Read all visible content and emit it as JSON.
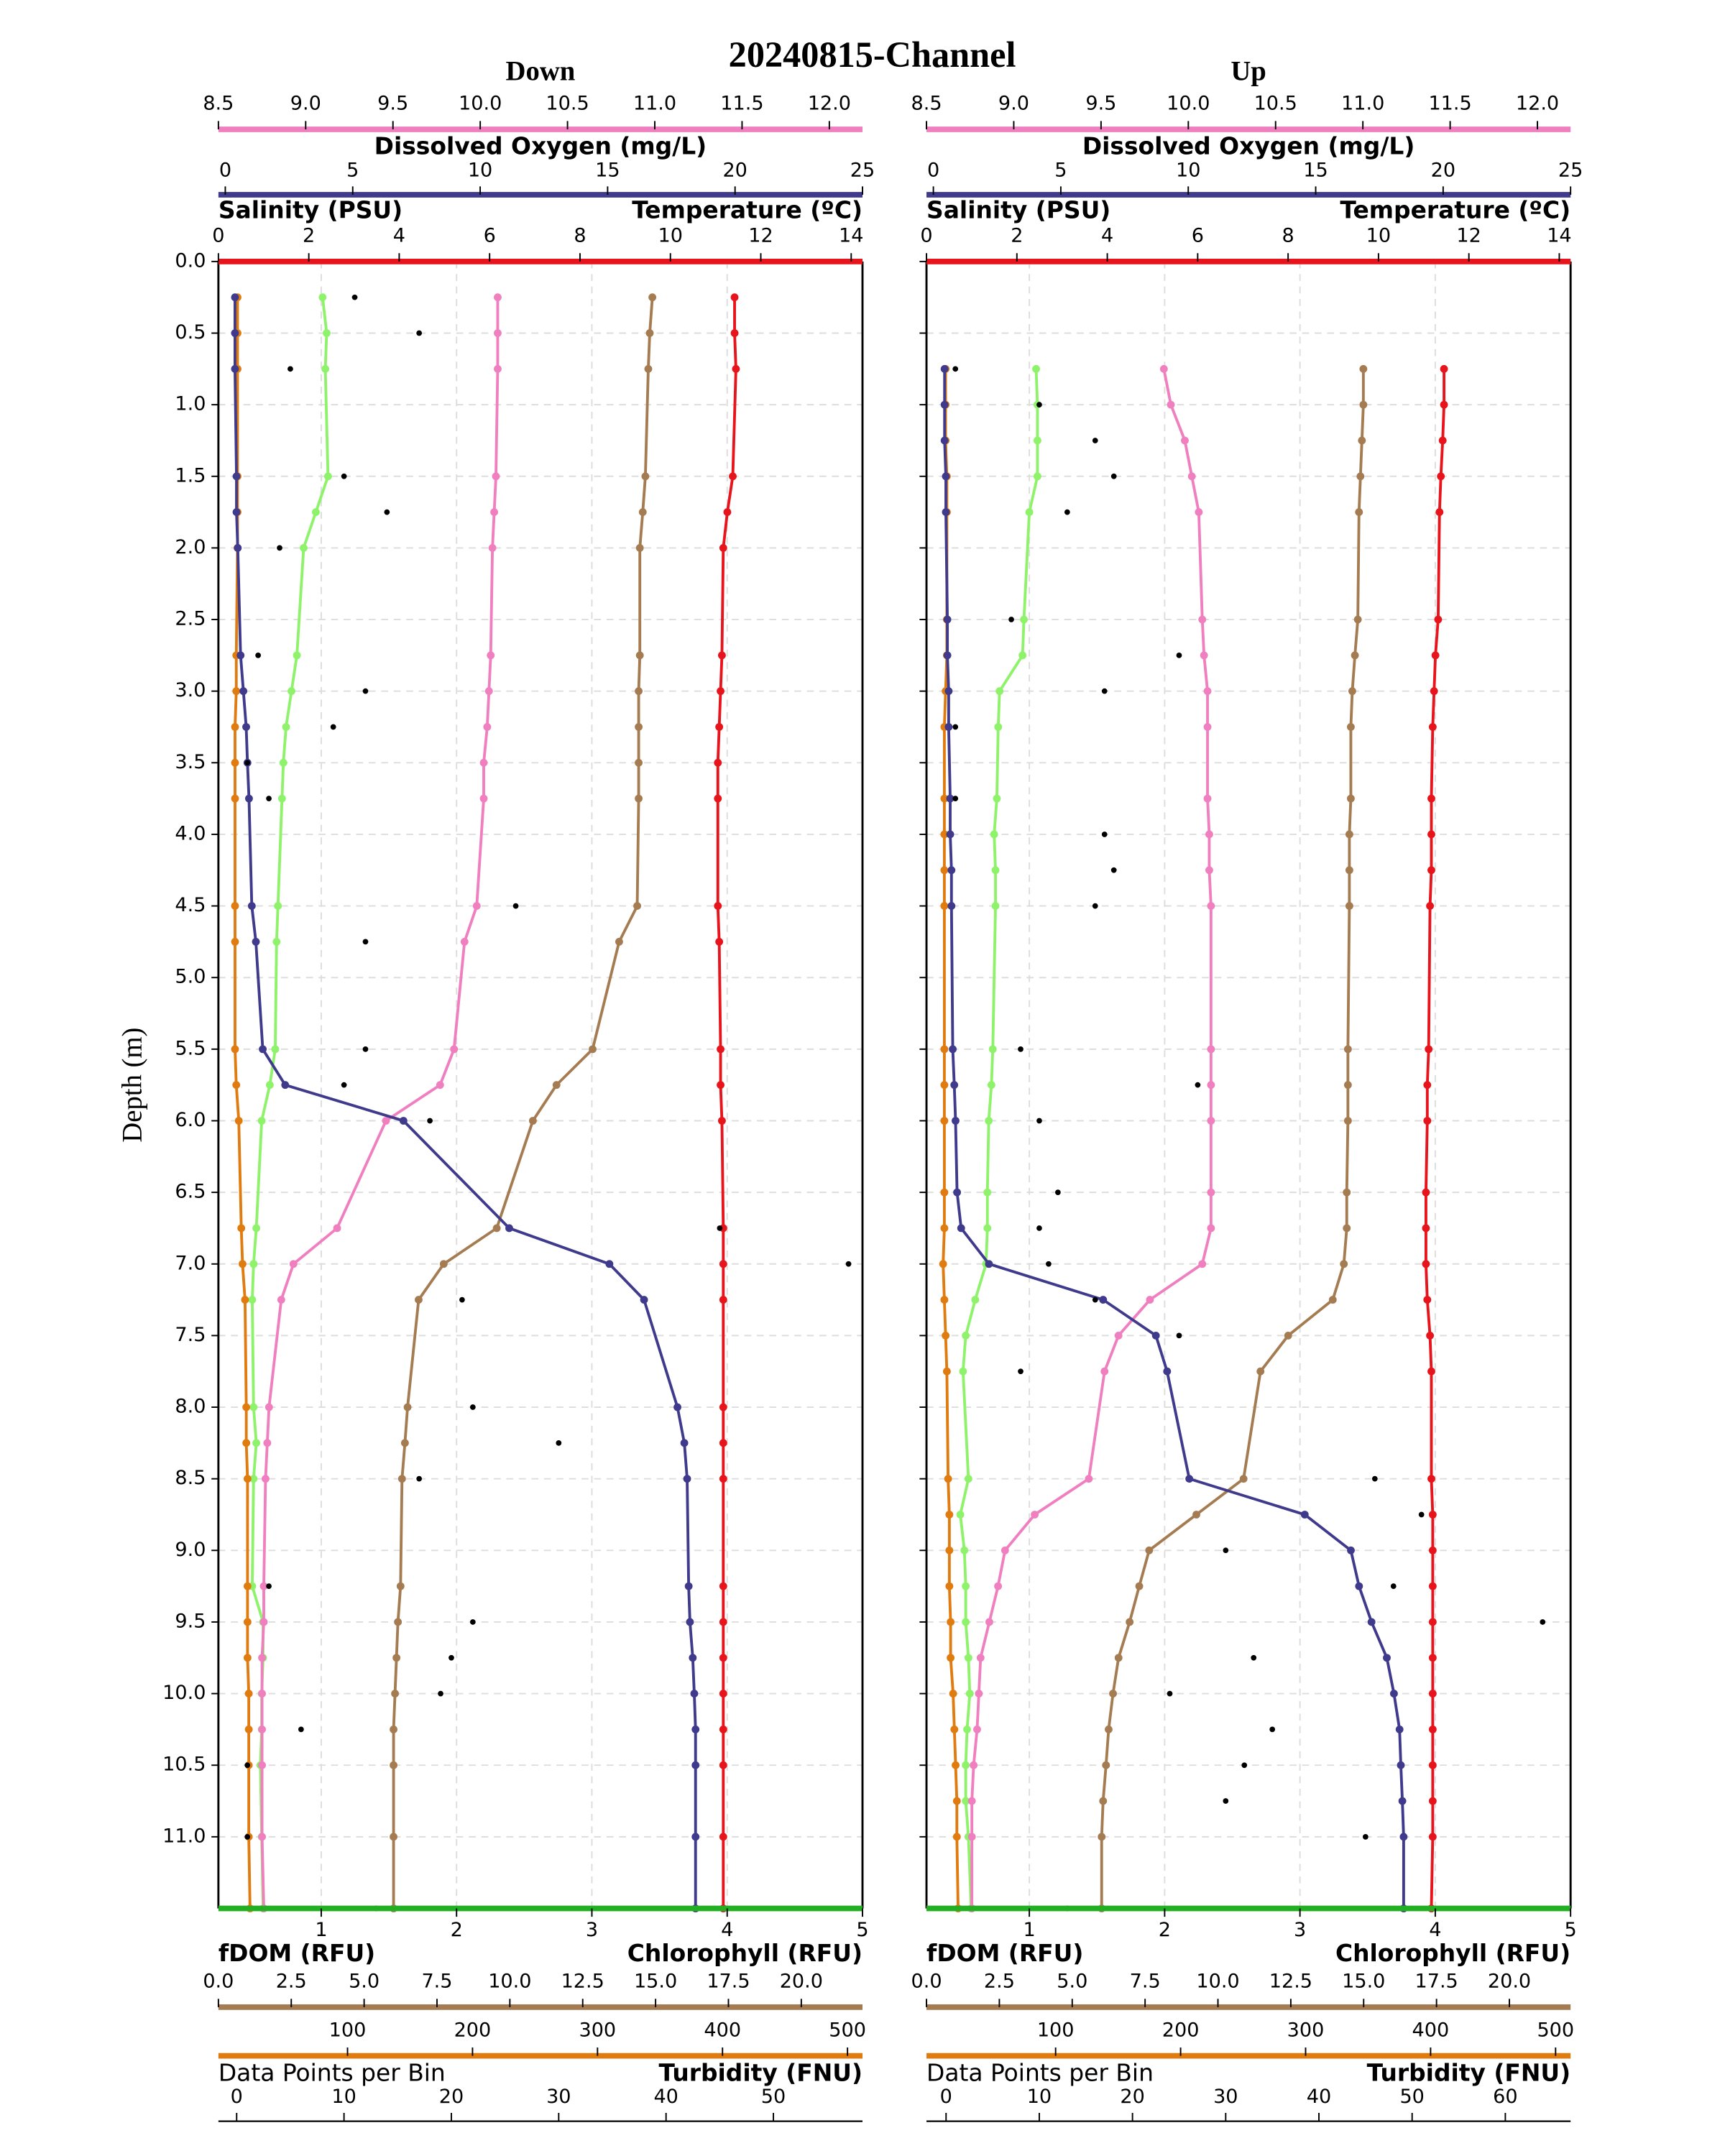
{
  "title": "20240815-Channel",
  "chart_data": [
    {
      "type": "line",
      "title": "Down",
      "ylabel": "Depth (m)",
      "inverted_y": true,
      "grid": true,
      "show_ytick_labels": true,
      "ylim": [
        0,
        11.5
      ],
      "yticks": [
        {
          "value": 0,
          "label": "0.0"
        },
        0.5,
        {
          "value": 1,
          "label": "1.0"
        },
        1.5,
        {
          "value": 2,
          "label": "2.0"
        },
        2.5,
        {
          "value": 3,
          "label": "3.0"
        },
        3.5,
        {
          "value": 4,
          "label": "4.0"
        },
        4.5,
        {
          "value": 5,
          "label": "5.0"
        },
        5.5,
        {
          "value": 6,
          "label": "6.0"
        },
        6.5,
        {
          "value": 7,
          "label": "7.0"
        },
        7.5,
        {
          "value": 8,
          "label": "8.0"
        },
        8.5,
        {
          "value": 9,
          "label": "9.0"
        },
        9.5,
        {
          "value": 10,
          "label": "10.0"
        },
        10.5,
        {
          "value": 11,
          "label": "11.0"
        }
      ],
      "axes": [
        {
          "label": "Dissolved Oxygen (mg/L)",
          "color": "#f07fc0",
          "xlim": [
            8.5,
            12.19
          ],
          "xticks": [
            8.5,
            {
              "value": 9,
              "label": "9.0"
            },
            9.5,
            {
              "value": 10,
              "label": "10.0"
            },
            10.5,
            {
              "value": 11,
              "label": "11.0"
            },
            11.5,
            {
              "value": 12,
              "label": "12.0"
            }
          ]
        },
        {
          "label": "Salinity (PSU)",
          "color": "#3f3a8c",
          "xlim": [
            -0.27,
            25
          ],
          "xticks": [
            0,
            5,
            10,
            15,
            20,
            25
          ]
        },
        {
          "label": "Temperature (ºC)",
          "color": "#e8141c",
          "xlim": [
            0,
            14.25
          ],
          "xticks": [
            0,
            2,
            4,
            6,
            8,
            10,
            12,
            14
          ]
        },
        {
          "label": "Chlorophyll (RFU)",
          "color": "#22b022",
          "xlim": [
            0.24,
            5
          ],
          "xticks": [
            1,
            2,
            3,
            4,
            5
          ]
        },
        {
          "label": "fDOM (RFU)",
          "color": "#a57c52",
          "xlim": [
            0,
            22.1
          ],
          "xticks": [
            {
              "value": 0,
              "label": "0.0"
            },
            2.5,
            {
              "value": 5,
              "label": "5.0"
            },
            7.5,
            {
              "value": 10,
              "label": "10.0"
            },
            12.5,
            {
              "value": 15,
              "label": "15.0"
            },
            17.5,
            {
              "value": 20,
              "label": "20.0"
            }
          ]
        },
        {
          "label": "Turbidity (FNU)",
          "color": "#e07b10",
          "xlim": [
            -3.3,
            512
          ],
          "xticks": [
            100,
            200,
            300,
            400,
            500
          ]
        },
        {
          "label": "Data Points per Bin",
          "color": "#000000",
          "xlim": [
            -1.7,
            58.3
          ],
          "xticks": [
            0,
            10,
            20,
            30,
            40,
            50
          ]
        }
      ],
      "y": [
        0.25,
        0.5,
        0.75,
        1.5,
        1.75,
        2.0,
        2.75,
        3.0,
        3.25,
        3.5,
        3.75,
        4.5,
        4.75,
        5.5,
        5.75,
        6.0,
        6.75,
        7.0,
        7.25,
        8.0,
        8.25,
        8.5,
        9.25,
        9.5,
        9.75,
        10.0,
        10.25,
        10.5,
        11.0,
        11.5
      ],
      "series": [
        {
          "axis": 3,
          "color": "#8ef36b",
          "values": [
            1.01,
            1.04,
            1.03,
            1.05,
            0.96,
            0.87,
            0.82,
            0.78,
            0.74,
            0.72,
            0.71,
            0.68,
            0.67,
            0.66,
            0.62,
            0.56,
            0.52,
            0.5,
            0.49,
            0.5,
            0.52,
            0.5,
            0.49,
            0.57,
            0.57,
            0.56,
            0.56,
            0.55,
            0.56,
            0.57
          ]
        },
        {
          "axis": 5,
          "color": "#e07b10",
          "values": [
            12,
            12,
            12,
            12,
            12,
            12,
            11,
            11,
            10,
            10,
            10,
            10,
            10,
            10,
            11,
            13,
            15,
            16,
            18,
            19,
            19,
            20,
            20,
            20,
            20,
            21,
            21,
            21,
            21,
            22
          ]
        },
        {
          "axis": 4,
          "color": "#a57c52",
          "values": [
            14.89,
            14.8,
            14.75,
            14.65,
            14.56,
            14.46,
            14.46,
            14.42,
            14.42,
            14.42,
            14.42,
            14.37,
            13.75,
            12.84,
            11.6,
            10.79,
            9.55,
            7.73,
            6.87,
            6.49,
            6.4,
            6.3,
            6.25,
            6.16,
            6.11,
            6.06,
            6.01,
            6.01,
            6.01,
            6.01
          ]
        },
        {
          "axis": 0,
          "color": "#f07fc0",
          "values": [
            10.1,
            10.1,
            10.1,
            10.09,
            10.08,
            10.07,
            10.06,
            10.05,
            10.04,
            10.02,
            10.02,
            9.98,
            9.91,
            9.85,
            9.77,
            9.46,
            9.18,
            8.93,
            8.86,
            8.79,
            8.78,
            8.77,
            8.76,
            8.76,
            8.75,
            8.75,
            8.75,
            8.75,
            8.75,
            8.76
          ]
        },
        {
          "axis": 1,
          "color": "#3f3a8c",
          "values": [
            0.38,
            0.38,
            0.38,
            0.44,
            0.44,
            0.49,
            0.6,
            0.71,
            0.82,
            0.87,
            0.93,
            1.04,
            1.2,
            1.47,
            2.35,
            6.99,
            11.14,
            15.07,
            16.43,
            17.74,
            18.01,
            18.12,
            18.18,
            18.23,
            18.34,
            18.4,
            18.45,
            18.45,
            18.45,
            18.45
          ]
        },
        {
          "axis": 2,
          "color": "#e8141c",
          "values": [
            11.42,
            11.42,
            11.45,
            11.38,
            11.26,
            11.17,
            11.14,
            11.11,
            11.08,
            11.05,
            11.05,
            11.05,
            11.08,
            11.11,
            11.11,
            11.14,
            11.17,
            11.17,
            11.17,
            11.17,
            11.17,
            11.17,
            11.17,
            11.17,
            11.17,
            11.17,
            11.17,
            11.17,
            11.17,
            11.17
          ]
        },
        {
          "axis": 6,
          "color": "#000000",
          "marker_only": true,
          "values": [
            11,
            17,
            5,
            10,
            14,
            4,
            2,
            12,
            9,
            1,
            3,
            26,
            12,
            12,
            10,
            18,
            45,
            57,
            21,
            22,
            30,
            17,
            3,
            22,
            20,
            19,
            6,
            1,
            1,
            13
          ]
        }
      ]
    },
    {
      "type": "line",
      "title": "Up",
      "inverted_y": true,
      "grid": true,
      "show_ytick_labels": false,
      "ylim": [
        0,
        11.5
      ],
      "yticks": [
        0,
        0.5,
        1,
        1.5,
        2,
        2.5,
        3,
        3.5,
        4,
        4.5,
        5,
        5.5,
        6,
        6.5,
        7,
        7.5,
        8,
        8.5,
        9,
        9.5,
        10,
        10.5,
        11
      ],
      "axes": [
        {
          "label": "Dissolved Oxygen (mg/L)",
          "color": "#f07fc0",
          "xlim": [
            8.5,
            12.19
          ],
          "xticks": [
            8.5,
            {
              "value": 9,
              "label": "9.0"
            },
            9.5,
            {
              "value": 10,
              "label": "10.0"
            },
            10.5,
            {
              "value": 11,
              "label": "11.0"
            },
            11.5,
            {
              "value": 12,
              "label": "12.0"
            }
          ]
        },
        {
          "label": "Salinity (PSU)",
          "color": "#3f3a8c",
          "xlim": [
            -0.27,
            25
          ],
          "xticks": [
            0,
            5,
            10,
            15,
            20,
            25
          ]
        },
        {
          "label": "Temperature (ºC)",
          "color": "#e8141c",
          "xlim": [
            0,
            14.25
          ],
          "xticks": [
            0,
            2,
            4,
            6,
            8,
            10,
            12,
            14
          ]
        },
        {
          "label": "Chlorophyll (RFU)",
          "color": "#22b022",
          "xlim": [
            0.24,
            5
          ],
          "xticks": [
            1,
            2,
            3,
            4,
            5
          ]
        },
        {
          "label": "fDOM (RFU)",
          "color": "#a57c52",
          "xlim": [
            0,
            22.1
          ],
          "xticks": [
            {
              "value": 0,
              "label": "0.0"
            },
            2.5,
            {
              "value": 5,
              "label": "5.0"
            },
            7.5,
            {
              "value": 10,
              "label": "10.0"
            },
            12.5,
            {
              "value": 15,
              "label": "15.0"
            },
            17.5,
            {
              "value": 20,
              "label": "20.0"
            }
          ]
        },
        {
          "label": "Turbidity (FNU)",
          "color": "#e07b10",
          "xlim": [
            -3.3,
            512
          ],
          "xticks": [
            100,
            200,
            300,
            400,
            500
          ]
        },
        {
          "label": "Data Points per Bin",
          "color": "#000000",
          "xlim": [
            -2.1,
            67
          ],
          "xticks": [
            0,
            10,
            20,
            30,
            40,
            50,
            60
          ]
        }
      ],
      "y": [
        0.75,
        1.0,
        1.25,
        1.5,
        1.75,
        2.5,
        2.75,
        3.0,
        3.25,
        3.75,
        4.0,
        4.25,
        4.5,
        5.5,
        5.75,
        6.0,
        6.5,
        6.75,
        7.0,
        7.25,
        7.5,
        7.75,
        8.5,
        8.75,
        9.0,
        9.25,
        9.5,
        9.75,
        10.0,
        10.25,
        10.5,
        10.75,
        11.0,
        11.5
      ],
      "series": [
        {
          "axis": 3,
          "color": "#8ef36b",
          "values": [
            1.05,
            1.06,
            1.06,
            1.06,
            1.0,
            0.96,
            0.95,
            0.78,
            0.77,
            0.76,
            0.74,
            0.75,
            0.75,
            0.73,
            0.72,
            0.7,
            0.69,
            0.69,
            0.68,
            0.6,
            0.53,
            0.51,
            0.55,
            0.49,
            0.52,
            0.53,
            0.53,
            0.55,
            0.56,
            0.54,
            0.53,
            0.53,
            0.55,
            0.57
          ]
        },
        {
          "axis": 5,
          "color": "#e07b10",
          "values": [
            12,
            12,
            12,
            13,
            13,
            13,
            13,
            12,
            11,
            11,
            11,
            11,
            11,
            11,
            11,
            11,
            11,
            11,
            10,
            11,
            12,
            13,
            14,
            15,
            15,
            15,
            16,
            16,
            18,
            19,
            20,
            21,
            21,
            22
          ]
        },
        {
          "axis": 4,
          "color": "#a57c52",
          "values": [
            14.99,
            14.99,
            14.94,
            14.89,
            14.84,
            14.8,
            14.7,
            14.61,
            14.56,
            14.56,
            14.51,
            14.51,
            14.51,
            14.46,
            14.46,
            14.46,
            14.42,
            14.42,
            14.32,
            13.94,
            12.41,
            11.46,
            10.88,
            9.26,
            7.64,
            7.3,
            6.97,
            6.59,
            6.4,
            6.25,
            6.16,
            6.06,
            6.01,
            6.01
          ]
        },
        {
          "axis": 0,
          "color": "#f07fc0",
          "values": [
            9.86,
            9.9,
            9.98,
            10.02,
            10.06,
            10.08,
            10.09,
            10.11,
            10.11,
            10.11,
            10.12,
            10.12,
            10.13,
            10.13,
            10.13,
            10.13,
            10.13,
            10.13,
            10.08,
            9.78,
            9.6,
            9.52,
            9.43,
            9.12,
            8.95,
            8.91,
            8.86,
            8.81,
            8.8,
            8.79,
            8.77,
            8.76,
            8.76,
            8.76
          ]
        },
        {
          "axis": 1,
          "color": "#3f3a8c",
          "values": [
            0.44,
            0.44,
            0.44,
            0.49,
            0.49,
            0.55,
            0.55,
            0.6,
            0.6,
            0.66,
            0.66,
            0.71,
            0.71,
            0.76,
            0.82,
            0.87,
            0.93,
            1.09,
            2.18,
            6.66,
            8.73,
            9.17,
            10.04,
            14.57,
            16.38,
            16.7,
            17.19,
            17.79,
            18.07,
            18.29,
            18.34,
            18.4,
            18.45,
            18.45
          ]
        },
        {
          "axis": 2,
          "color": "#e8141c",
          "values": [
            11.45,
            11.45,
            11.42,
            11.38,
            11.35,
            11.32,
            11.26,
            11.23,
            11.2,
            11.17,
            11.17,
            11.17,
            11.14,
            11.11,
            11.08,
            11.08,
            11.05,
            11.05,
            11.05,
            11.08,
            11.14,
            11.17,
            11.17,
            11.2,
            11.2,
            11.2,
            11.2,
            11.2,
            11.2,
            11.2,
            11.2,
            11.2,
            11.2,
            11.17
          ]
        },
        {
          "axis": 6,
          "color": "#000000",
          "marker_only": true,
          "values": [
            1,
            10,
            16,
            18,
            13,
            7,
            25,
            17,
            1,
            1,
            17,
            18,
            16,
            8,
            27,
            10,
            12,
            10,
            11,
            16,
            25,
            8,
            46,
            51,
            30,
            48,
            64,
            33,
            24,
            35,
            32,
            30,
            45,
            13
          ]
        }
      ]
    }
  ]
}
